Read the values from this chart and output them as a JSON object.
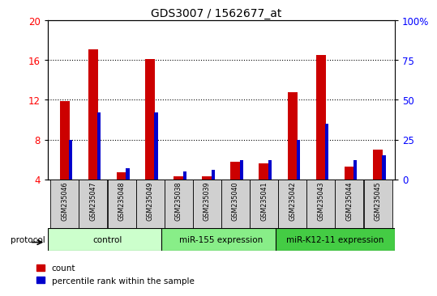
{
  "title": "GDS3007 / 1562677_at",
  "samples": [
    "GSM235046",
    "GSM235047",
    "GSM235048",
    "GSM235049",
    "GSM235038",
    "GSM235039",
    "GSM235040",
    "GSM235041",
    "GSM235042",
    "GSM235043",
    "GSM235044",
    "GSM235045"
  ],
  "count_values": [
    11.9,
    17.1,
    4.7,
    16.1,
    4.3,
    4.3,
    5.8,
    5.6,
    12.8,
    16.5,
    5.3,
    7.0
  ],
  "percentile_values": [
    25,
    42,
    7,
    42,
    5,
    6,
    12,
    12,
    25,
    35,
    12,
    15
  ],
  "groups": [
    {
      "label": "control",
      "start": 0,
      "end": 4,
      "color": "#ccffcc"
    },
    {
      "label": "miR-155 expression",
      "start": 4,
      "end": 8,
      "color": "#88ee88"
    },
    {
      "label": "miR-K12-11 expression",
      "start": 8,
      "end": 12,
      "color": "#44cc44"
    }
  ],
  "ylim_left": [
    4,
    20
  ],
  "ylim_right": [
    0,
    100
  ],
  "yticks_left": [
    4,
    8,
    12,
    16,
    20
  ],
  "yticks_right": [
    0,
    25,
    50,
    75,
    100
  ],
  "ytick_labels_right": [
    "0",
    "25",
    "50",
    "75",
    "100%"
  ],
  "bar_color_red": "#cc0000",
  "bar_color_blue": "#0000cc",
  "red_bar_width": 0.35,
  "blue_bar_width": 0.12,
  "background_color": "#ffffff"
}
